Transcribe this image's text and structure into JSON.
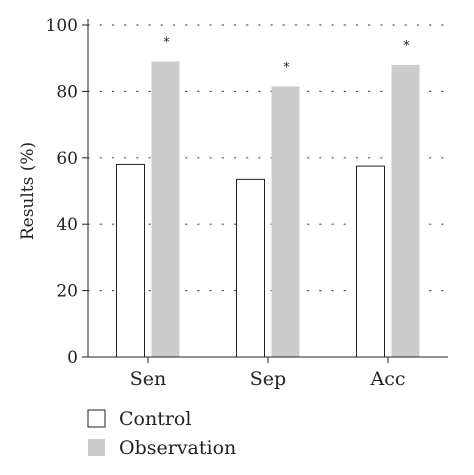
{
  "chart_data": {
    "type": "bar",
    "categories": [
      "Sen",
      "Sep",
      "Acc"
    ],
    "series": [
      {
        "name": "Control",
        "values": [
          58,
          53.5,
          57.5
        ],
        "color": "#ffffff",
        "stroke": "#222222"
      },
      {
        "name": "Observation",
        "values": [
          89,
          81.5,
          88
        ],
        "color": "#cccccc",
        "stroke": "none"
      }
    ],
    "annotations": [
      "*",
      "*",
      "*"
    ],
    "ylabel": "Results (%)",
    "xlabel": "",
    "ylim": [
      0,
      100
    ],
    "yticks": [
      0,
      20,
      40,
      60,
      80,
      100
    ],
    "grid": "horizontal dotted",
    "legend_placement": "bottom-left"
  }
}
